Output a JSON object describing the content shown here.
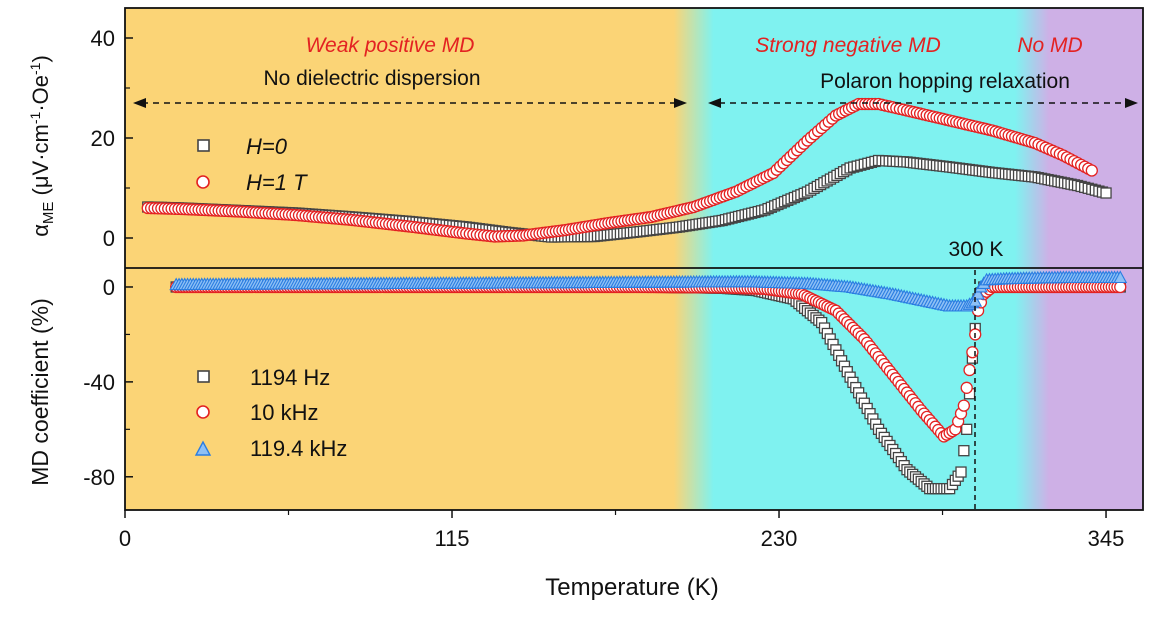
{
  "chart_data": [
    {
      "type": "scatter",
      "panel": "top",
      "ylabel": "α_ME (μV·cm⁻¹·Oe⁻¹)",
      "xlim": [
        0,
        358
      ],
      "ylim": [
        -6,
        46
      ],
      "y_ticks": [
        "0",
        "20",
        "40"
      ],
      "grid": false,
      "regions": [
        {
          "label": "Weak positive MD",
          "sublabel": "No dielectric dispersion",
          "from": 0,
          "to": 200,
          "color": "#fbd476"
        },
        {
          "label": "Strong negative MD",
          "sublabel": "Polaron hopping relaxation",
          "from": 200,
          "to": 320,
          "color": "#7ff2f0"
        },
        {
          "label": "No MD",
          "from": 320,
          "to": 358,
          "color": "#ceb0e6"
        }
      ],
      "series": [
        {
          "name": "H=0",
          "marker": "square",
          "color": "#444444",
          "x": [
            8,
            20,
            40,
            60,
            80,
            100,
            120,
            135,
            150,
            165,
            180,
            195,
            210,
            225,
            240,
            255,
            265,
            275,
            290,
            305,
            320,
            335,
            345
          ],
          "y": [
            6.2,
            6.0,
            5.5,
            5.0,
            4.2,
            3.3,
            2.2,
            1.1,
            0.2,
            0.3,
            1.2,
            2.2,
            3.5,
            5.6,
            9.2,
            14.0,
            15.5,
            15.2,
            14.2,
            13.1,
            12.2,
            10.5,
            9.0
          ]
        },
        {
          "name": "H=1 T",
          "marker": "circle",
          "color": "#e32222",
          "x": [
            8,
            20,
            40,
            60,
            80,
            100,
            120,
            130,
            140,
            155,
            170,
            185,
            200,
            215,
            228,
            240,
            250,
            258,
            265,
            275,
            290,
            305,
            320,
            330,
            340
          ],
          "y": [
            6.0,
            5.8,
            5.3,
            4.6,
            3.6,
            2.3,
            0.9,
            0.3,
            0.5,
            1.6,
            3.0,
            4.2,
            6.2,
            9.3,
            13.0,
            19.5,
            24.5,
            26.8,
            26.8,
            25.5,
            23.5,
            21.5,
            19.0,
            16.5,
            13.5
          ]
        }
      ],
      "legend": "left",
      "annotations": [
        {
          "text": "300 K",
          "x": 300
        }
      ]
    },
    {
      "type": "scatter",
      "panel": "bottom",
      "xlabel": "Temperature (K)",
      "ylabel": "MD coefficient (%)",
      "xlim": [
        0,
        358
      ],
      "ylim": [
        -94,
        8
      ],
      "x_ticks": [
        "0",
        "115",
        "230",
        "345"
      ],
      "y_ticks": [
        "0",
        "-40",
        "-80"
      ],
      "grid": false,
      "series": [
        {
          "name": "1194 Hz",
          "marker": "square",
          "color": "#444444",
          "x": [
            18,
            60,
            120,
            180,
            210,
            222,
            235,
            245,
            255,
            265,
            275,
            283,
            290,
            294,
            296,
            298,
            300,
            302,
            305,
            315,
            330,
            350
          ],
          "y": [
            0,
            0,
            0,
            0,
            -0.5,
            -1.5,
            -5,
            -15,
            -38,
            -60,
            -77,
            -85,
            -85,
            -78,
            -60,
            -30,
            -5,
            0,
            0.5,
            0.5,
            0.3,
            0
          ]
        },
        {
          "name": "10 kHz",
          "marker": "circle",
          "color": "#e32222",
          "x": [
            18,
            60,
            120,
            180,
            210,
            225,
            238,
            250,
            260,
            270,
            280,
            288,
            292,
            295,
            297,
            299,
            300,
            302,
            305,
            315,
            330,
            350
          ],
          "y": [
            0,
            0,
            0,
            0,
            -0.2,
            -0.8,
            -3,
            -10,
            -22,
            -37,
            -52,
            -63,
            -60,
            -50,
            -35,
            -20,
            -10,
            -3,
            0,
            0,
            0,
            0
          ]
        },
        {
          "name": "119.4 kHz",
          "marker": "triangle",
          "color": "#2a7de1",
          "x": [
            18,
            60,
            120,
            180,
            220,
            240,
            255,
            270,
            280,
            290,
            296,
            299,
            301,
            303,
            310,
            330,
            350
          ],
          "y": [
            1,
            1.3,
            1.6,
            2,
            2.2,
            1.5,
            0,
            -3,
            -5.5,
            -8,
            -8,
            -6,
            0,
            3,
            3.5,
            4,
            4
          ]
        }
      ],
      "legend": "left",
      "annotations": [
        {
          "text": "",
          "x": 300,
          "style": "dashed vertical line"
        }
      ]
    }
  ]
}
